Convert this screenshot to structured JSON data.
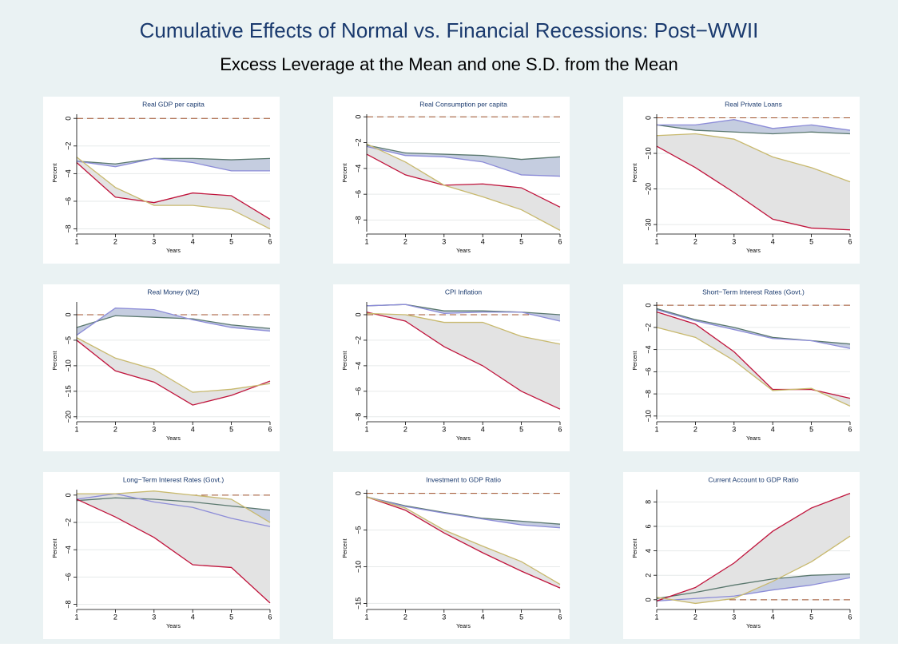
{
  "title": "Cumulative Effects of Normal vs. Financial Recessions: Post−WWII",
  "subtitle": "Excess Leverage at the Mean and one S.D. from the Mean",
  "chart_data": [
    {
      "type": "line",
      "title": "Real GDP per capita",
      "xlabel": "Years",
      "ylabel": "Percent",
      "x": [
        1,
        2,
        3,
        4,
        5,
        6
      ],
      "xlim": [
        1,
        6
      ],
      "xticks": [
        1,
        2,
        3,
        4,
        5,
        6
      ],
      "ylim": [
        -8.2,
        0.3
      ],
      "yticks": [
        0,
        {
          "value": -2,
          "label": "−2"
        },
        {
          "value": -4,
          "label": "−4"
        },
        {
          "value": -6,
          "label": "−6"
        },
        {
          "value": -8,
          "label": "−8"
        }
      ],
      "grid": true,
      "hline": {
        "value": 0,
        "color": "#a0522d"
      },
      "fill_colors": [
        "#c5cde0",
        "#e3e3e3"
      ],
      "series": [
        {
          "color": "#5a786e",
          "values": [
            -3.1,
            -3.3,
            -2.9,
            -2.9,
            -3.0,
            -2.9
          ]
        },
        {
          "color": "#8c8cd8",
          "values": [
            -3.1,
            -3.5,
            -2.9,
            -3.2,
            -3.8,
            -3.8
          ]
        },
        {
          "color": "#c0143c",
          "values": [
            -3.2,
            -5.7,
            -6.1,
            -5.4,
            -5.6,
            -7.3
          ]
        },
        {
          "color": "#c8b96e",
          "values": [
            -2.8,
            -5.0,
            -6.3,
            -6.3,
            -6.6,
            -8.0
          ]
        }
      ]
    },
    {
      "type": "line",
      "title": "Real Consumption per capita",
      "xlabel": "Years",
      "ylabel": "Percent",
      "x": [
        1,
        2,
        3,
        4,
        5,
        6
      ],
      "xlim": [
        1,
        6
      ],
      "xticks": [
        1,
        2,
        3,
        4,
        5,
        6
      ],
      "ylim": [
        -8.9,
        0.2
      ],
      "yticks": [
        0,
        {
          "value": -2,
          "label": "−2"
        },
        {
          "value": -4,
          "label": "−4"
        },
        {
          "value": -6,
          "label": "−6"
        },
        {
          "value": -8,
          "label": "−8"
        }
      ],
      "grid": true,
      "hline": {
        "value": 0,
        "color": "#a0522d"
      },
      "fill_colors": [
        "#c5cde0",
        "#e3e3e3"
      ],
      "series": [
        {
          "color": "#5a786e",
          "values": [
            -2.2,
            -2.8,
            -2.9,
            -3.0,
            -3.3,
            -3.1
          ]
        },
        {
          "color": "#8c8cd8",
          "values": [
            -2.3,
            -3.0,
            -3.1,
            -3.5,
            -4.5,
            -4.6
          ]
        },
        {
          "color": "#c0143c",
          "values": [
            -2.9,
            -4.5,
            -5.3,
            -5.2,
            -5.5,
            -7.0
          ]
        },
        {
          "color": "#c8b96e",
          "values": [
            -2.1,
            -3.5,
            -5.3,
            -6.2,
            -7.2,
            -8.8
          ]
        }
      ]
    },
    {
      "type": "line",
      "title": "Real Private Loans",
      "xlabel": "Years",
      "ylabel": "Percent",
      "x": [
        1,
        2,
        3,
        4,
        5,
        6
      ],
      "xlim": [
        1,
        6
      ],
      "xticks": [
        1,
        2,
        3,
        4,
        5,
        6
      ],
      "ylim": [
        -32,
        1
      ],
      "yticks": [
        0,
        {
          "value": -10,
          "label": "−10"
        },
        {
          "value": -20,
          "label": "−20"
        },
        {
          "value": -30,
          "label": "−30"
        }
      ],
      "grid": true,
      "hline": {
        "value": 0,
        "color": "#a0522d"
      },
      "fill_colors": [
        "#c5cde0",
        "#e3e3e3"
      ],
      "series": [
        {
          "color": "#5a786e",
          "values": [
            -2,
            -3.5,
            -4,
            -4.5,
            -4,
            -4.5
          ]
        },
        {
          "color": "#8c8cd8",
          "values": [
            -2,
            -2,
            -0.5,
            -3,
            -2,
            -3.5
          ]
        },
        {
          "color": "#c0143c",
          "values": [
            -8,
            -14,
            -21,
            -28.5,
            -31,
            -31.5
          ]
        },
        {
          "color": "#c8b96e",
          "values": [
            -5,
            -4.5,
            -6,
            -11,
            -14,
            -18
          ]
        }
      ]
    },
    {
      "type": "line",
      "title": "Real Money (M2)",
      "xlabel": "Years",
      "ylabel": "Percent",
      "x": [
        1,
        2,
        3,
        4,
        5,
        6
      ],
      "xlim": [
        1,
        6
      ],
      "xticks": [
        1,
        2,
        3,
        4,
        5,
        6
      ],
      "ylim": [
        -20.5,
        2.5
      ],
      "yticks": [
        0,
        {
          "value": -5,
          "label": "−5"
        },
        {
          "value": -10,
          "label": "−10"
        },
        {
          "value": -15,
          "label": "−15"
        },
        {
          "value": -20,
          "label": "−20"
        }
      ],
      "grid": true,
      "hline": {
        "value": 0,
        "color": "#a0522d"
      },
      "fill_colors": [
        "#c5cde0",
        "#e3e3e3"
      ],
      "series": [
        {
          "color": "#5a786e",
          "values": [
            -2.5,
            -0.2,
            -0.5,
            -0.8,
            -2.0,
            -2.7
          ]
        },
        {
          "color": "#8c8cd8",
          "values": [
            -4,
            1.3,
            1.0,
            -1,
            -2.5,
            -3.2
          ]
        },
        {
          "color": "#c0143c",
          "values": [
            -5,
            -11,
            -13.2,
            -17.7,
            -15.8,
            -13
          ]
        },
        {
          "color": "#c8b96e",
          "values": [
            -4.5,
            -8.5,
            -10.7,
            -15.2,
            -14.6,
            -13.5
          ]
        }
      ]
    },
    {
      "type": "line",
      "title": "CPI Inflation",
      "xlabel": "Years",
      "ylabel": "Percent",
      "x": [
        1,
        2,
        3,
        4,
        5,
        6
      ],
      "xlim": [
        1,
        6
      ],
      "xticks": [
        1,
        2,
        3,
        4,
        5,
        6
      ],
      "ylim": [
        -8.2,
        1
      ],
      "yticks": [
        0,
        {
          "value": -2,
          "label": "−2"
        },
        {
          "value": -4,
          "label": "−4"
        },
        {
          "value": -6,
          "label": "−6"
        },
        {
          "value": -8,
          "label": "−8"
        }
      ],
      "grid": true,
      "hline": {
        "value": 0,
        "color": "#a0522d"
      },
      "fill_colors": [
        "#c5cde0",
        "#e3e3e3"
      ],
      "series": [
        {
          "color": "#5a786e",
          "values": [
            0.7,
            0.8,
            0.3,
            0.3,
            0.2,
            0.0
          ]
        },
        {
          "color": "#8c8cd8",
          "values": [
            0.7,
            0.8,
            0.1,
            0.2,
            0.2,
            -0.5
          ]
        },
        {
          "color": "#c0143c",
          "values": [
            0.2,
            -0.5,
            -2.5,
            -4.0,
            -6.0,
            -7.4
          ]
        },
        {
          "color": "#c8b96e",
          "values": [
            0.1,
            0.0,
            -0.6,
            -0.6,
            -1.7,
            -2.3
          ]
        }
      ]
    },
    {
      "type": "line",
      "title": "Short−Term Interest Rates (Govt.)",
      "xlabel": "Years",
      "ylabel": "Percent",
      "x": [
        1,
        2,
        3,
        4,
        5,
        6
      ],
      "xlim": [
        1,
        6
      ],
      "xticks": [
        1,
        2,
        3,
        4,
        5,
        6
      ],
      "ylim": [
        -10.3,
        0.3
      ],
      "yticks": [
        0,
        {
          "value": -2,
          "label": "−2"
        },
        {
          "value": -4,
          "label": "−4"
        },
        {
          "value": -6,
          "label": "−6"
        },
        {
          "value": -8,
          "label": "−8"
        },
        {
          "value": -10,
          "label": "−10"
        }
      ],
      "grid": true,
      "hline": {
        "value": 0,
        "color": "#a0522d"
      },
      "fill_colors": [
        "#c5cde0",
        "#e3e3e3"
      ],
      "series": [
        {
          "color": "#5a786e",
          "values": [
            -0.3,
            -1.3,
            -2.0,
            -2.9,
            -3.2,
            -3.5
          ]
        },
        {
          "color": "#8c8cd8",
          "values": [
            -0.4,
            -1.4,
            -2.2,
            -3.0,
            -3.2,
            -3.9
          ]
        },
        {
          "color": "#c0143c",
          "values": [
            -0.6,
            -1.7,
            -4.2,
            -7.6,
            -7.6,
            -8.4
          ]
        },
        {
          "color": "#c8b96e",
          "values": [
            -2.0,
            -2.9,
            -5.0,
            -7.7,
            -7.5,
            -9.1
          ]
        }
      ]
    },
    {
      "type": "line",
      "title": "Long−Term Interest Rates (Govt.)",
      "xlabel": "Years",
      "ylabel": "Percent",
      "x": [
        1,
        2,
        3,
        4,
        5,
        6
      ],
      "xlim": [
        1,
        6
      ],
      "xticks": [
        1,
        2,
        3,
        4,
        5,
        6
      ],
      "ylim": [
        -8.2,
        0.4
      ],
      "yticks": [
        0,
        {
          "value": -2,
          "label": "−2"
        },
        {
          "value": -4,
          "label": "−4"
        },
        {
          "value": -6,
          "label": "−6"
        },
        {
          "value": -8,
          "label": "−8"
        }
      ],
      "grid": true,
      "hline": {
        "value": 0,
        "color": "#a0522d"
      },
      "fill_colors": [
        "#c5cde0",
        "#e3e3e3"
      ],
      "series": [
        {
          "color": "#5a786e",
          "values": [
            -0.4,
            -0.2,
            -0.3,
            -0.5,
            -0.8,
            -1.1
          ]
        },
        {
          "color": "#8c8cd8",
          "values": [
            -0.3,
            0.1,
            -0.5,
            -0.9,
            -1.7,
            -2.3
          ]
        },
        {
          "color": "#c0143c",
          "values": [
            -0.3,
            -1.6,
            -3.1,
            -5.1,
            -5.3,
            -7.9
          ]
        },
        {
          "color": "#c8b96e",
          "values": [
            0.1,
            0.1,
            0.3,
            0.0,
            -0.3,
            -2.0
          ]
        }
      ]
    },
    {
      "type": "line",
      "title": "Investment to GDP Ratio",
      "xlabel": "Years",
      "ylabel": "Percent",
      "x": [
        1,
        2,
        3,
        4,
        5,
        6
      ],
      "xlim": [
        1,
        6
      ],
      "xticks": [
        1,
        2,
        3,
        4,
        5,
        6
      ],
      "ylim": [
        -15.5,
        0.5
      ],
      "yticks": [
        0,
        {
          "value": -5,
          "label": "−5"
        },
        {
          "value": -10,
          "label": "−10"
        },
        {
          "value": -15,
          "label": "−15"
        }
      ],
      "grid": true,
      "hline": {
        "value": 0,
        "color": "#a0522d"
      },
      "fill_colors": [
        "#c5cde0",
        "#e3e3e3"
      ],
      "series": [
        {
          "color": "#5a786e",
          "values": [
            -0.5,
            -1.7,
            -2.6,
            -3.4,
            -3.8,
            -4.2
          ]
        },
        {
          "color": "#8c8cd8",
          "values": [
            -0.5,
            -1.8,
            -2.7,
            -3.5,
            -4.3,
            -4.7
          ]
        },
        {
          "color": "#c0143c",
          "values": [
            -0.5,
            -2.3,
            -5.4,
            -8.1,
            -10.6,
            -12.9
          ]
        },
        {
          "color": "#c8b96e",
          "values": [
            -0.5,
            -2.0,
            -5.0,
            -7.2,
            -9.3,
            -12.4
          ]
        }
      ]
    },
    {
      "type": "line",
      "title": "Current Account to GDP Ratio",
      "xlabel": "Years",
      "ylabel": "Percent",
      "x": [
        1,
        2,
        3,
        4,
        5,
        6
      ],
      "xlim": [
        1,
        6
      ],
      "xticks": [
        1,
        2,
        3,
        4,
        5,
        6
      ],
      "ylim": [
        -0.6,
        9
      ],
      "yticks": [
        0,
        2,
        4,
        6,
        8
      ],
      "grid": true,
      "hline": {
        "value": 0,
        "color": "#a0522d"
      },
      "fill_colors": [
        "#c5cde0",
        "#e3e3e3"
      ],
      "series": [
        {
          "color": "#5a786e",
          "values": [
            0.1,
            0.6,
            1.2,
            1.7,
            2.0,
            2.1
          ]
        },
        {
          "color": "#8c8cd8",
          "values": [
            -0.1,
            0.1,
            0.3,
            0.8,
            1.2,
            1.8
          ]
        },
        {
          "color": "#c0143c",
          "values": [
            -0.1,
            1.0,
            3.0,
            5.6,
            7.5,
            8.7
          ]
        },
        {
          "color": "#c8b96e",
          "values": [
            0.2,
            -0.3,
            0.1,
            1.5,
            3.1,
            5.2
          ]
        }
      ]
    }
  ]
}
